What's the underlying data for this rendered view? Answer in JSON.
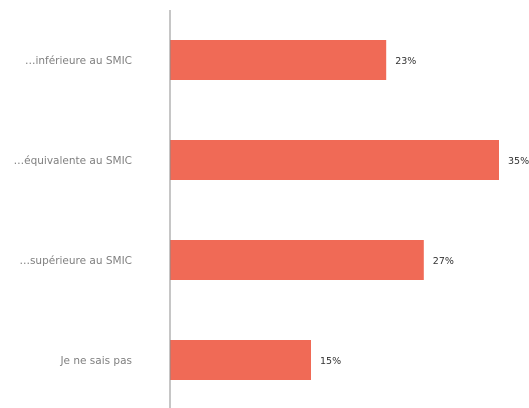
{
  "chart_data": {
    "type": "bar",
    "orientation": "horizontal",
    "categories": [
      "…inférieure au SMIC",
      "…équivalente au SMIC",
      "…supérieure au SMIC",
      "Je ne sais pas"
    ],
    "values": [
      23,
      35,
      27,
      15
    ],
    "value_labels": [
      "23%",
      "35%",
      "27%",
      "15%"
    ],
    "unit": "%",
    "xlim": [
      0,
      35
    ],
    "grid": false,
    "legend": "none",
    "colors": {
      "bar": "#f06a56",
      "axis": "#8c8c8c",
      "category_text": "#7f7f7f",
      "value_text": "#333333"
    }
  }
}
